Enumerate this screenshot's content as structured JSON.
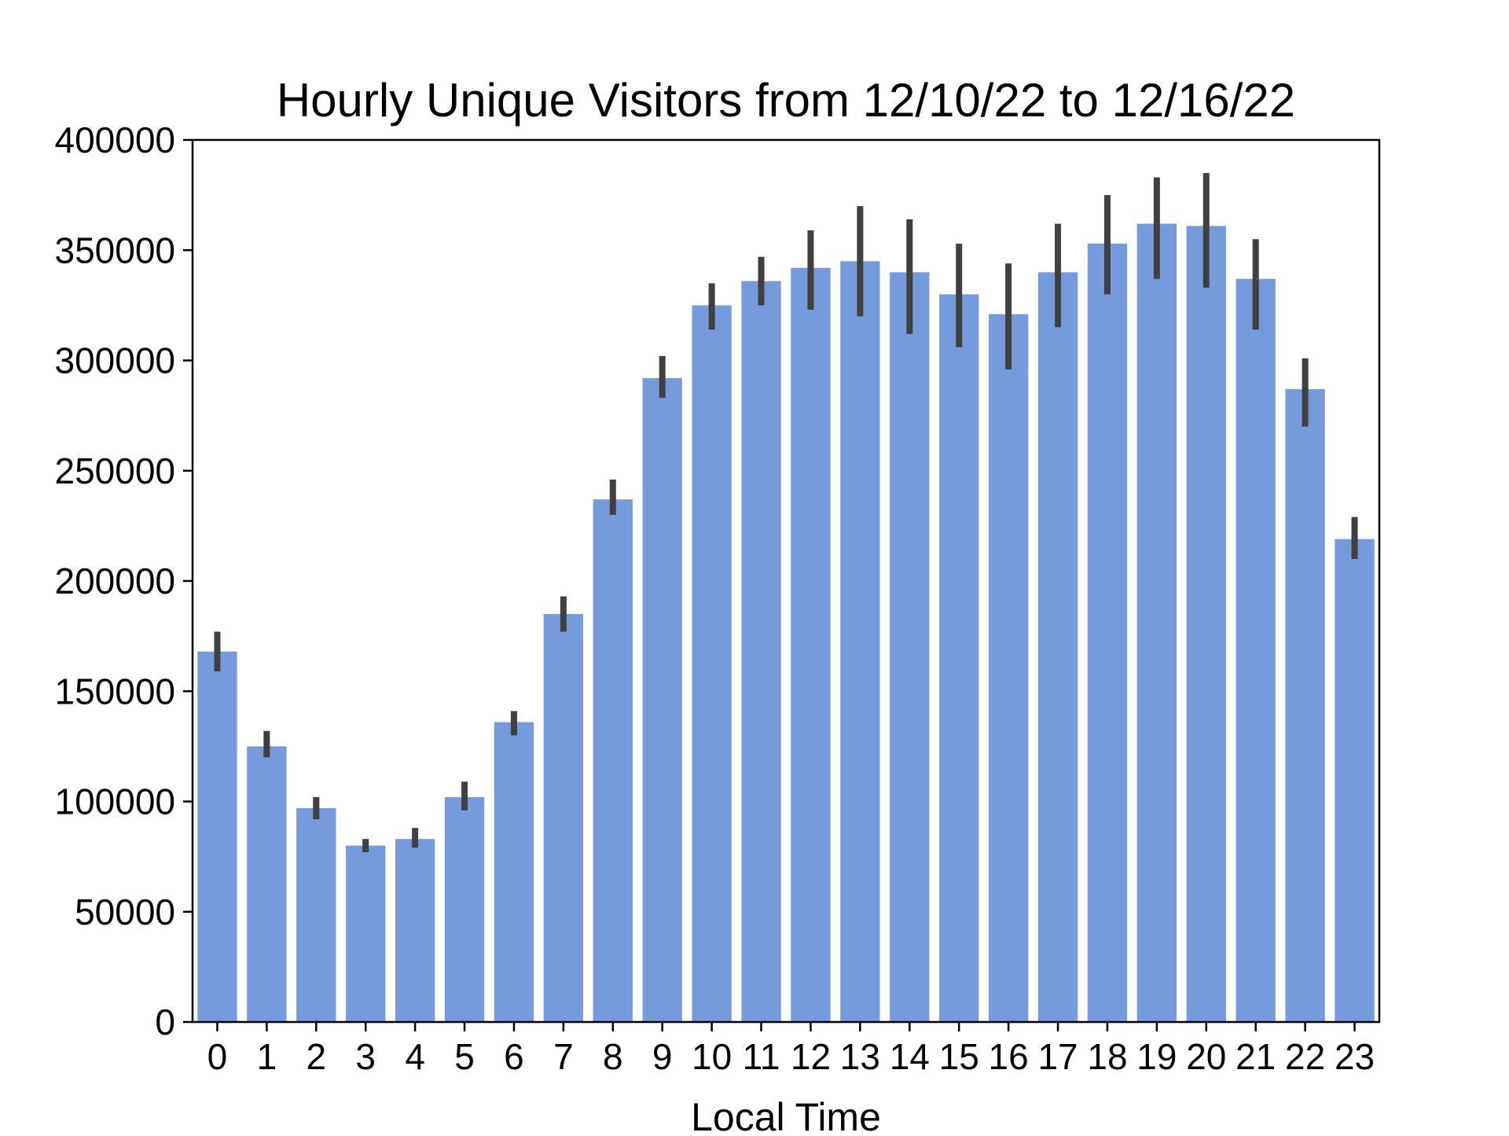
{
  "chart_data": {
    "type": "bar",
    "title": "Hourly Unique Visitors from 12/10/22 to 12/16/22",
    "xlabel": "Local Time",
    "ylabel": "",
    "categories": [
      "0",
      "1",
      "2",
      "3",
      "4",
      "5",
      "6",
      "7",
      "8",
      "9",
      "10",
      "11",
      "12",
      "13",
      "14",
      "15",
      "16",
      "17",
      "18",
      "19",
      "20",
      "21",
      "22",
      "23"
    ],
    "values": [
      168000,
      125000,
      97000,
      80000,
      83000,
      102000,
      136000,
      185000,
      237000,
      292000,
      325000,
      336000,
      342000,
      345000,
      340000,
      330000,
      321000,
      340000,
      353000,
      362000,
      361000,
      337000,
      287000,
      219000
    ],
    "error_low": [
      159000,
      120000,
      92000,
      77000,
      79000,
      96000,
      130000,
      177000,
      230000,
      283000,
      314000,
      325000,
      323000,
      320000,
      312000,
      306000,
      296000,
      315000,
      330000,
      337000,
      333000,
      314000,
      270000,
      210000
    ],
    "error_high": [
      177000,
      132000,
      102000,
      83000,
      88000,
      109000,
      141000,
      193000,
      246000,
      302000,
      335000,
      347000,
      359000,
      370000,
      364000,
      353000,
      344000,
      362000,
      375000,
      383000,
      385000,
      355000,
      301000,
      229000
    ],
    "ylim": [
      0,
      400000
    ],
    "yticks": [
      "0",
      "50000",
      "100000",
      "150000",
      "200000",
      "250000",
      "300000",
      "350000",
      "400000"
    ],
    "grid": false,
    "legend": "none",
    "colors": {
      "bar": "#769bdc",
      "error": "#404040",
      "axis": "#000000"
    }
  }
}
